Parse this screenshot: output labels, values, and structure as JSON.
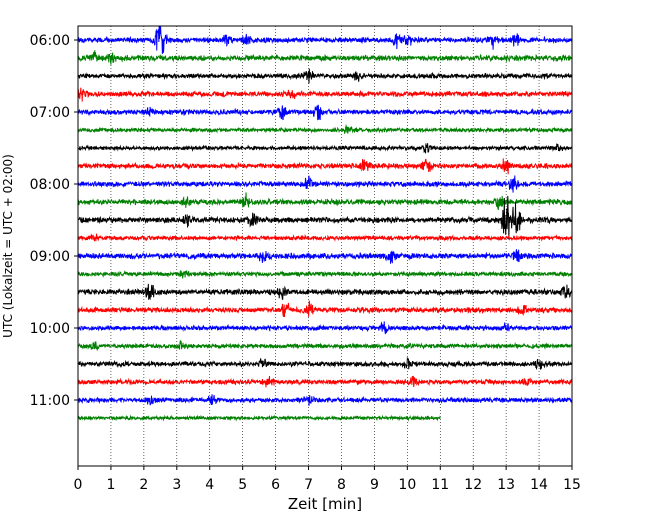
{
  "chart_data": {
    "type": "line",
    "title": "",
    "xlabel": "Zeit  [min]",
    "ylabel": "UTC (Lokalzeit = UTC + 02:00)",
    "xlim": [
      0,
      15
    ],
    "x_ticks": [
      "0",
      "1",
      "2",
      "3",
      "4",
      "5",
      "6",
      "7",
      "8",
      "9",
      "10",
      "11",
      "12",
      "13",
      "14",
      "15"
    ],
    "y_ticks": [
      "06:00",
      "07:00",
      "08:00",
      "09:00",
      "10:00",
      "11:00"
    ],
    "grid": "vertical dotted",
    "color_cycle": [
      "#0000ff",
      "#008000",
      "#000000",
      "#ff0000"
    ],
    "series": [
      {
        "start": "06:00",
        "color": "#0000ff",
        "amplitude": 1.2,
        "events": [
          [
            2.45,
            5
          ],
          [
            2.6,
            3.5
          ],
          [
            4.5,
            2.2
          ],
          [
            5.1,
            2.2
          ],
          [
            9.7,
            2.5
          ],
          [
            10.0,
            2.2
          ],
          [
            12.6,
            2.7
          ],
          [
            13.3,
            2.2
          ]
        ]
      },
      {
        "start": "06:15",
        "color": "#008000",
        "amplitude": 1.3,
        "events": [
          [
            0.5,
            2
          ],
          [
            1.0,
            1.6
          ]
        ]
      },
      {
        "start": "06:30",
        "color": "#000000",
        "amplitude": 1.1,
        "events": [
          [
            7.0,
            2.5
          ],
          [
            8.5,
            1.6
          ]
        ]
      },
      {
        "start": "06:45",
        "color": "#ff0000",
        "amplitude": 1.2,
        "events": [
          [
            0.1,
            2
          ],
          [
            6.5,
            1.5
          ]
        ]
      },
      {
        "start": "07:00",
        "color": "#0000ff",
        "amplitude": 1.2,
        "events": [
          [
            2.2,
            1.8
          ],
          [
            6.2,
            2.2
          ],
          [
            7.3,
            2.8
          ]
        ]
      },
      {
        "start": "07:15",
        "color": "#008000",
        "amplitude": 0.9,
        "events": [
          [
            8.2,
            1.6
          ]
        ]
      },
      {
        "start": "07:30",
        "color": "#000000",
        "amplitude": 0.9,
        "events": [
          [
            10.6,
            2
          ],
          [
            14.6,
            1.8
          ]
        ]
      },
      {
        "start": "07:45",
        "color": "#ff0000",
        "amplitude": 1.2,
        "events": [
          [
            8.7,
            2.5
          ],
          [
            10.6,
            2.5
          ],
          [
            13.0,
            3
          ]
        ]
      },
      {
        "start": "08:00",
        "color": "#0000ff",
        "amplitude": 1.2,
        "events": [
          [
            7.0,
            2.8
          ],
          [
            13.2,
            3
          ]
        ]
      },
      {
        "start": "08:15",
        "color": "#008000",
        "amplitude": 1.3,
        "events": [
          [
            3.3,
            1.8
          ],
          [
            5.1,
            2.2
          ],
          [
            12.8,
            2
          ]
        ]
      },
      {
        "start": "08:30",
        "color": "#000000",
        "amplitude": 1.3,
        "events": [
          [
            13.0,
            9
          ],
          [
            13.3,
            7
          ],
          [
            5.3,
            2.2
          ],
          [
            3.3,
            2
          ]
        ]
      },
      {
        "start": "08:45",
        "color": "#ff0000",
        "amplitude": 1.0,
        "events": [
          [
            0.5,
            1.5
          ]
        ]
      },
      {
        "start": "09:00",
        "color": "#0000ff",
        "amplitude": 1.3,
        "events": [
          [
            5.6,
            2
          ],
          [
            9.5,
            2.2
          ],
          [
            13.3,
            2.5
          ]
        ]
      },
      {
        "start": "09:15",
        "color": "#008000",
        "amplitude": 1.0,
        "events": [
          [
            3.2,
            1.5
          ]
        ]
      },
      {
        "start": "09:30",
        "color": "#000000",
        "amplitude": 1.3,
        "events": [
          [
            2.2,
            2.8
          ],
          [
            6.2,
            2
          ],
          [
            14.8,
            2
          ]
        ]
      },
      {
        "start": "09:45",
        "color": "#ff0000",
        "amplitude": 1.2,
        "events": [
          [
            7.0,
            2.8
          ],
          [
            6.3,
            2.5
          ],
          [
            13.5,
            1.8
          ]
        ]
      },
      {
        "start": "10:00",
        "color": "#0000ff",
        "amplitude": 1.1,
        "events": [
          [
            9.3,
            1.8
          ],
          [
            13.0,
            1.6
          ]
        ]
      },
      {
        "start": "10:15",
        "color": "#008000",
        "amplitude": 1.0,
        "events": [
          [
            0.5,
            1.6
          ],
          [
            3.1,
            1.5
          ]
        ]
      },
      {
        "start": "10:30",
        "color": "#000000",
        "amplitude": 1.1,
        "events": [
          [
            5.6,
            2.2
          ],
          [
            10.0,
            2
          ],
          [
            14.0,
            1.8
          ]
        ]
      },
      {
        "start": "10:45",
        "color": "#ff0000",
        "amplitude": 1.1,
        "events": [
          [
            5.8,
            2.8
          ],
          [
            10.2,
            2.2
          ],
          [
            13.6,
            1.6
          ]
        ]
      },
      {
        "start": "11:00",
        "color": "#0000ff",
        "amplitude": 1.1,
        "events": [
          [
            2.2,
            2
          ],
          [
            4.1,
            1.6
          ],
          [
            7.0,
            1.6
          ]
        ]
      },
      {
        "start": "11:15",
        "color": "#008000",
        "amplitude": 0.8,
        "end_min": 11.0,
        "events": []
      }
    ]
  }
}
